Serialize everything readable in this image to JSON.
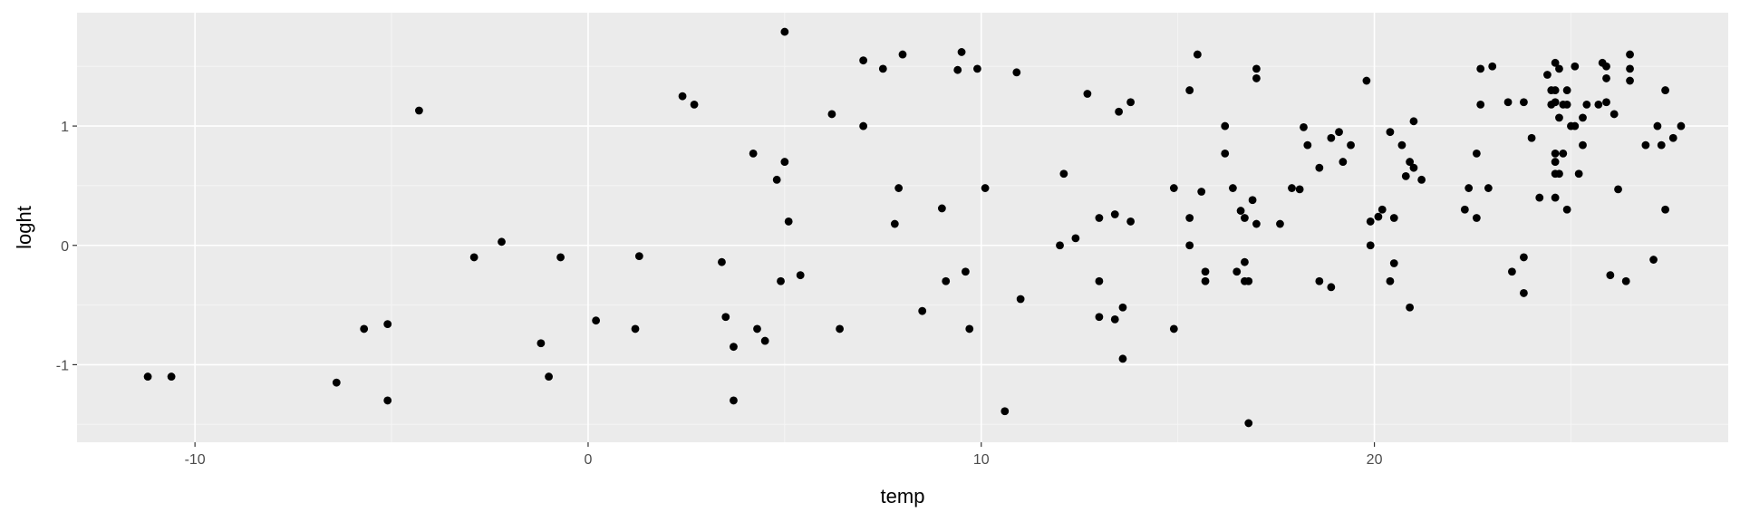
{
  "chart_data": {
    "type": "scatter",
    "title": "",
    "xlabel": "temp",
    "ylabel": "loght",
    "xlim": [
      -13,
      29
    ],
    "ylim": [
      -1.65,
      1.95
    ],
    "x_ticks": [
      -10,
      0,
      10,
      20
    ],
    "x_tick_labels": [
      "-10",
      "0",
      "10",
      "20"
    ],
    "y_ticks": [
      -1,
      0,
      1
    ],
    "y_tick_labels": [
      "-1",
      "0",
      "1"
    ],
    "grid": true,
    "legend": "none",
    "colors": {
      "panel": "#ebebeb",
      "grid_major": "#ffffff",
      "grid_minor": "#f5f5f5",
      "point": "#000000"
    },
    "points": [
      [
        -11.2,
        -1.1
      ],
      [
        -10.6,
        -1.1
      ],
      [
        -6.4,
        -1.15
      ],
      [
        -5.7,
        -0.7
      ],
      [
        -5.1,
        -0.66
      ],
      [
        -5.1,
        -1.3
      ],
      [
        -4.3,
        1.13
      ],
      [
        -2.9,
        -0.1
      ],
      [
        -2.2,
        0.03
      ],
      [
        -1.2,
        -0.82
      ],
      [
        -1.0,
        -1.1
      ],
      [
        -0.7,
        -0.1
      ],
      [
        0.2,
        -0.63
      ],
      [
        1.2,
        -0.7
      ],
      [
        1.3,
        -0.09
      ],
      [
        2.4,
        1.25
      ],
      [
        2.7,
        1.18
      ],
      [
        3.4,
        -0.14
      ],
      [
        3.5,
        -0.6
      ],
      [
        3.7,
        -0.85
      ],
      [
        3.7,
        -1.3
      ],
      [
        4.2,
        0.77
      ],
      [
        4.3,
        -0.7
      ],
      [
        4.5,
        -0.8
      ],
      [
        4.8,
        0.55
      ],
      [
        4.9,
        -0.3
      ],
      [
        5.0,
        1.79
      ],
      [
        5.0,
        0.7
      ],
      [
        5.1,
        0.2
      ],
      [
        5.4,
        -0.25
      ],
      [
        6.2,
        1.1
      ],
      [
        6.4,
        -0.7
      ],
      [
        7.0,
        1.55
      ],
      [
        7.0,
        1.0
      ],
      [
        7.5,
        1.48
      ],
      [
        7.8,
        0.18
      ],
      [
        7.9,
        0.48
      ],
      [
        8.0,
        1.6
      ],
      [
        8.5,
        -0.55
      ],
      [
        9.0,
        0.31
      ],
      [
        9.1,
        -0.3
      ],
      [
        9.4,
        1.47
      ],
      [
        9.5,
        1.62
      ],
      [
        9.6,
        -0.22
      ],
      [
        9.7,
        -0.7
      ],
      [
        9.9,
        1.48
      ],
      [
        10.1,
        0.48
      ],
      [
        10.6,
        -1.39
      ],
      [
        10.9,
        1.45
      ],
      [
        11.0,
        -0.45
      ],
      [
        12.0,
        0.0
      ],
      [
        12.1,
        0.6
      ],
      [
        12.4,
        0.06
      ],
      [
        12.7,
        1.27
      ],
      [
        13.0,
        0.23
      ],
      [
        13.0,
        -0.3
      ],
      [
        13.0,
        -0.6
      ],
      [
        13.4,
        0.26
      ],
      [
        13.4,
        -0.62
      ],
      [
        13.5,
        1.12
      ],
      [
        13.6,
        -0.52
      ],
      [
        13.6,
        -0.95
      ],
      [
        13.8,
        1.2
      ],
      [
        13.8,
        0.2
      ],
      [
        14.9,
        0.48
      ],
      [
        14.9,
        -0.7
      ],
      [
        15.3,
        1.3
      ],
      [
        15.3,
        0.23
      ],
      [
        15.3,
        0.0
      ],
      [
        15.5,
        1.6
      ],
      [
        15.6,
        0.45
      ],
      [
        15.7,
        -0.22
      ],
      [
        15.7,
        -0.3
      ],
      [
        16.2,
        1.0
      ],
      [
        16.2,
        0.77
      ],
      [
        16.4,
        0.48
      ],
      [
        16.5,
        -0.22
      ],
      [
        16.6,
        0.29
      ],
      [
        16.7,
        -0.14
      ],
      [
        16.7,
        0.23
      ],
      [
        16.7,
        -0.3
      ],
      [
        16.8,
        -0.3
      ],
      [
        16.8,
        -1.49
      ],
      [
        16.9,
        0.38
      ],
      [
        17.0,
        1.48
      ],
      [
        17.0,
        1.4
      ],
      [
        17.0,
        0.18
      ],
      [
        17.6,
        0.18
      ],
      [
        17.9,
        0.48
      ],
      [
        18.1,
        0.47
      ],
      [
        18.2,
        0.99
      ],
      [
        18.3,
        0.84
      ],
      [
        18.6,
        0.65
      ],
      [
        18.6,
        -0.3
      ],
      [
        18.9,
        0.9
      ],
      [
        18.9,
        -0.35
      ],
      [
        19.1,
        0.95
      ],
      [
        19.2,
        0.7
      ],
      [
        19.4,
        0.84
      ],
      [
        19.8,
        1.38
      ],
      [
        19.9,
        0.2
      ],
      [
        19.9,
        0.0
      ],
      [
        20.1,
        0.24
      ],
      [
        20.2,
        0.3
      ],
      [
        20.4,
        0.95
      ],
      [
        20.4,
        -0.3
      ],
      [
        20.5,
        0.23
      ],
      [
        20.5,
        -0.15
      ],
      [
        20.7,
        0.84
      ],
      [
        20.8,
        0.58
      ],
      [
        20.9,
        0.7
      ],
      [
        20.9,
        -0.52
      ],
      [
        21.0,
        1.04
      ],
      [
        21.0,
        0.65
      ],
      [
        21.2,
        0.55
      ],
      [
        22.3,
        0.3
      ],
      [
        22.4,
        0.48
      ],
      [
        22.6,
        0.77
      ],
      [
        22.6,
        0.23
      ],
      [
        22.7,
        1.48
      ],
      [
        22.7,
        1.18
      ],
      [
        22.9,
        0.48
      ],
      [
        23.0,
        1.5
      ],
      [
        23.4,
        1.2
      ],
      [
        23.5,
        -0.22
      ],
      [
        23.8,
        1.2
      ],
      [
        23.8,
        -0.1
      ],
      [
        23.8,
        -0.4
      ],
      [
        24.0,
        0.9
      ],
      [
        24.2,
        0.4
      ],
      [
        24.4,
        1.43
      ],
      [
        24.5,
        1.3
      ],
      [
        24.5,
        1.18
      ],
      [
        24.6,
        1.53
      ],
      [
        24.6,
        1.3
      ],
      [
        24.6,
        1.2
      ],
      [
        24.6,
        0.77
      ],
      [
        24.6,
        0.7
      ],
      [
        24.6,
        0.6
      ],
      [
        24.6,
        0.4
      ],
      [
        24.7,
        1.48
      ],
      [
        24.7,
        1.07
      ],
      [
        24.7,
        0.6
      ],
      [
        24.8,
        1.18
      ],
      [
        24.8,
        0.77
      ],
      [
        24.9,
        1.3
      ],
      [
        24.9,
        1.18
      ],
      [
        24.9,
        0.3
      ],
      [
        25.0,
        1.0
      ],
      [
        25.1,
        1.5
      ],
      [
        25.1,
        1.0
      ],
      [
        25.2,
        0.6
      ],
      [
        25.3,
        1.07
      ],
      [
        25.3,
        0.84
      ],
      [
        25.4,
        1.18
      ],
      [
        25.7,
        1.18
      ],
      [
        25.8,
        1.53
      ],
      [
        25.9,
        1.4
      ],
      [
        25.9,
        1.5
      ],
      [
        25.9,
        1.2
      ],
      [
        26.0,
        -0.25
      ],
      [
        26.1,
        1.1
      ],
      [
        26.2,
        0.47
      ],
      [
        26.4,
        -0.3
      ],
      [
        26.5,
        1.6
      ],
      [
        26.5,
        1.48
      ],
      [
        26.5,
        1.38
      ],
      [
        26.9,
        0.84
      ],
      [
        27.1,
        -0.12
      ],
      [
        27.2,
        1.0
      ],
      [
        27.3,
        0.84
      ],
      [
        27.4,
        1.3
      ],
      [
        27.4,
        0.3
      ],
      [
        27.6,
        0.9
      ],
      [
        27.8,
        1.0
      ]
    ]
  }
}
